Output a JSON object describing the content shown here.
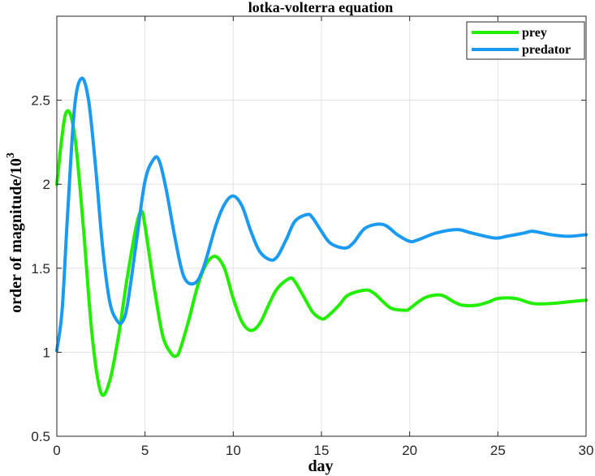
{
  "chart_data": {
    "type": "line",
    "title": "lotka-volterra equation",
    "xlabel": "day",
    "ylabel": "order of magnitude/10",
    "ylabel_exp": "3",
    "xlim": [
      0,
      30
    ],
    "ylim": [
      0.5,
      3.0
    ],
    "xticks": [
      0,
      5,
      10,
      15,
      20,
      25,
      30
    ],
    "yticks": [
      0.5,
      1,
      1.5,
      2,
      2.5
    ],
    "ytick_labels": [
      "0.5",
      "1",
      "1.5",
      "2",
      "2.5"
    ],
    "grid": true,
    "legend_position": "top-right",
    "series": [
      {
        "name": "prey",
        "color": "#22ee00",
        "x": [
          0,
          0.5,
          1,
          1.5,
          2,
          2.5,
          3,
          3.5,
          4,
          4.5,
          4.8,
          5,
          5.5,
          6,
          6.5,
          6.8,
          7,
          7.5,
          8,
          8.5,
          9,
          9.5,
          10,
          10.5,
          11,
          11.5,
          12,
          12.5,
          13.2,
          13.5,
          14,
          14.5,
          15,
          15.3,
          16,
          16.5,
          17.5,
          18,
          18.5,
          19,
          19.8,
          20,
          20.5,
          21,
          21.8,
          22.5,
          23,
          23.8,
          24.5,
          25,
          26,
          27,
          28,
          29,
          30
        ],
        "y": [
          2.0,
          2.42,
          2.3,
          1.75,
          1.1,
          0.76,
          0.83,
          1.1,
          1.45,
          1.75,
          1.84,
          1.75,
          1.4,
          1.1,
          0.99,
          0.98,
          1.02,
          1.2,
          1.4,
          1.53,
          1.57,
          1.5,
          1.32,
          1.18,
          1.13,
          1.17,
          1.28,
          1.38,
          1.44,
          1.42,
          1.33,
          1.24,
          1.2,
          1.21,
          1.28,
          1.34,
          1.37,
          1.35,
          1.3,
          1.26,
          1.25,
          1.26,
          1.3,
          1.33,
          1.34,
          1.3,
          1.28,
          1.28,
          1.3,
          1.32,
          1.32,
          1.29,
          1.29,
          1.3,
          1.31
        ]
      },
      {
        "name": "predator",
        "color": "#1a9af0",
        "x": [
          0,
          0.3,
          0.6,
          1,
          1.4,
          1.8,
          2.2,
          2.6,
          3,
          3.4,
          3.7,
          4,
          4.5,
          5,
          5.5,
          5.8,
          6.2,
          6.7,
          7.2,
          7.8,
          8.3,
          9,
          9.5,
          10,
          10.5,
          11,
          11.5,
          12.1,
          12.5,
          13,
          13.5,
          14.2,
          14.5,
          15,
          15.5,
          16.3,
          16.8,
          17.5,
          18.5,
          19.3,
          20,
          20.5,
          21.5,
          22.7,
          23.5,
          24.8,
          25.5,
          26.5,
          27,
          28,
          29,
          30
        ],
        "y": [
          1.01,
          1.25,
          1.8,
          2.45,
          2.63,
          2.5,
          2.1,
          1.62,
          1.3,
          1.19,
          1.18,
          1.28,
          1.65,
          2.02,
          2.15,
          2.14,
          1.97,
          1.68,
          1.45,
          1.41,
          1.5,
          1.75,
          1.88,
          1.93,
          1.87,
          1.72,
          1.6,
          1.55,
          1.57,
          1.67,
          1.78,
          1.82,
          1.8,
          1.72,
          1.65,
          1.62,
          1.65,
          1.74,
          1.76,
          1.7,
          1.66,
          1.67,
          1.71,
          1.73,
          1.71,
          1.68,
          1.69,
          1.71,
          1.72,
          1.7,
          1.69,
          1.7
        ]
      }
    ]
  }
}
